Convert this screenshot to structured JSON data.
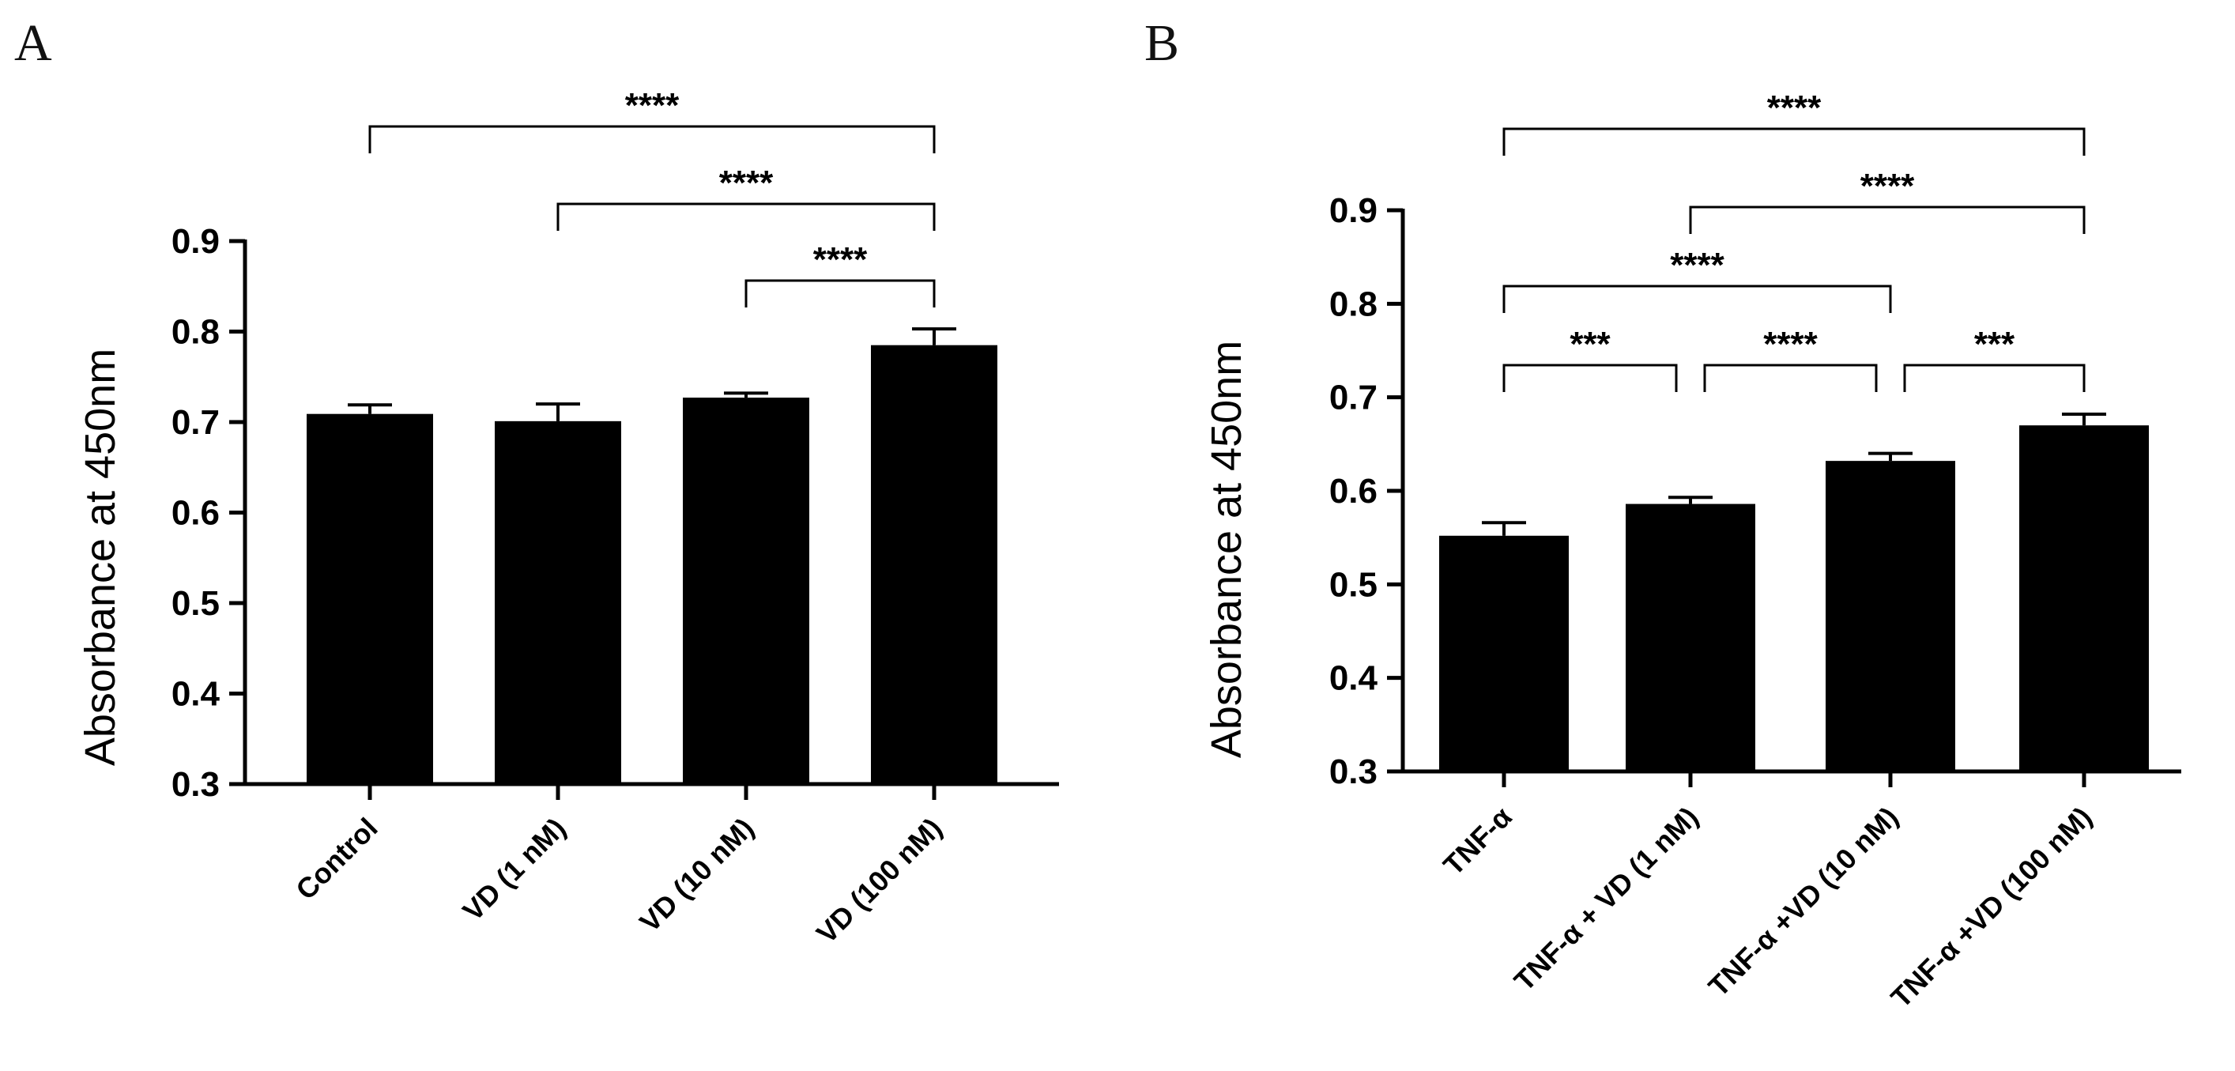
{
  "chart_data": [
    {
      "panel": "A",
      "type": "bar",
      "ylabel": "Absorbance at 450nm",
      "xlabel": "",
      "ylim": [
        0.3,
        0.9
      ],
      "yticks": [
        "0.3",
        "0.4",
        "0.5",
        "0.6",
        "0.7",
        "0.8",
        "0.9"
      ],
      "categories": [
        "Control",
        "VD (1 nM)",
        "VD (10 nM)",
        "VD (100 nM)"
      ],
      "values": [
        0.709,
        0.701,
        0.727,
        0.785
      ],
      "errors": [
        0.01,
        0.019,
        0.005,
        0.018
      ],
      "bar_color": "#000000",
      "comparisons": [
        {
          "from": 2,
          "to": 3,
          "label": "****"
        },
        {
          "from": 1,
          "to": 3,
          "label": "****"
        },
        {
          "from": 0,
          "to": 3,
          "label": "****"
        }
      ]
    },
    {
      "panel": "B",
      "type": "bar",
      "ylabel": "Absorbance at 450nm",
      "xlabel": "",
      "ylim": [
        0.3,
        0.9
      ],
      "yticks": [
        "0.3",
        "0.4",
        "0.5",
        "0.6",
        "0.7",
        "0.8",
        "0.9"
      ],
      "categories": [
        "TNF-α",
        "TNF-α + VD (1 nM)",
        "TNF-α +VD (10 nM)",
        "TNF-α +VD (100 nM)"
      ],
      "values": [
        0.552,
        0.586,
        0.632,
        0.67
      ],
      "errors": [
        0.014,
        0.007,
        0.008,
        0.012
      ],
      "bar_color": "#000000",
      "comparisons": [
        {
          "from": 0,
          "to": 1,
          "label": "***"
        },
        {
          "from": 1,
          "to": 2,
          "label": "****"
        },
        {
          "from": 2,
          "to": 3,
          "label": "***"
        },
        {
          "from": 0,
          "to": 2,
          "label": "****"
        },
        {
          "from": 1,
          "to": 3,
          "label": "****"
        },
        {
          "from": 0,
          "to": 3,
          "label": "****"
        }
      ]
    }
  ]
}
